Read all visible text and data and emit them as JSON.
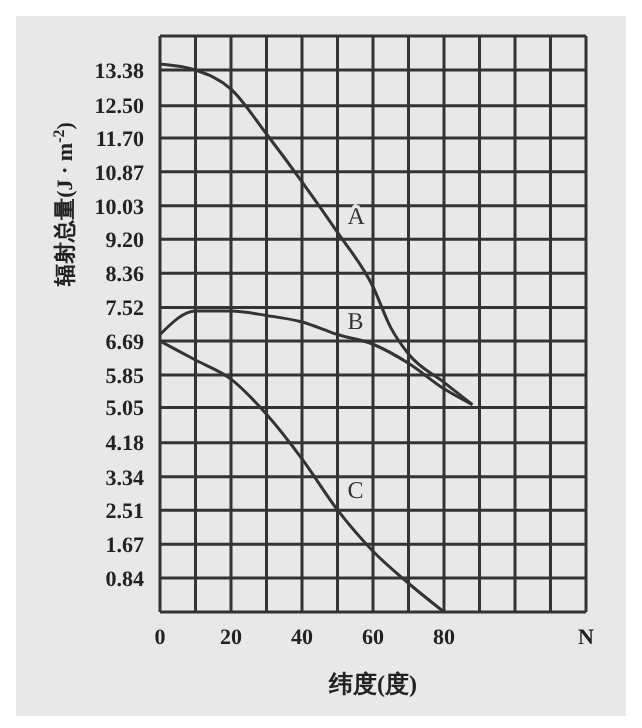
{
  "chart_data": {
    "type": "line",
    "xlabel": "纬度(度)",
    "ylabel": "辐射总量(J · m$^{-2}$)",
    "xlim": [
      0,
      120
    ],
    "xticks": [
      0,
      {
        "value": 10,
        "label": null
      },
      20,
      {
        "value": 30,
        "label": null
      },
      40,
      {
        "value": 50,
        "label": null
      },
      60,
      {
        "value": 70,
        "label": null
      },
      80,
      {
        "value": 90,
        "label": null
      },
      {
        "value": 100,
        "label": null
      },
      {
        "value": 110,
        "label": null
      },
      {
        "value": 120,
        "label": "N"
      }
    ],
    "ylim": [
      0,
      14.22
    ],
    "yticks": [
      {
        "value": 0,
        "label": null
      },
      0.84,
      1.67,
      2.51,
      3.34,
      4.18,
      5.05,
      5.85,
      6.69,
      7.52,
      8.36,
      {
        "value": 9.2,
        "label": "9.20"
      },
      10.03,
      10.87,
      {
        "value": 11.7,
        "label": "11.70"
      },
      {
        "value": 12.5,
        "label": "12.50"
      },
      13.38,
      {
        "value": 14.22,
        "label": null
      }
    ],
    "grid": true,
    "marker": "none",
    "line_style": "solid",
    "series": [
      {
        "name": "A",
        "color": "#333333",
        "x": [
          0,
          10,
          20,
          30,
          40,
          50,
          60,
          65,
          70,
          80,
          88
        ],
        "values": [
          13.53,
          13.38,
          12.91,
          11.8,
          10.62,
          9.37,
          8.03,
          7.02,
          6.37,
          5.67,
          5.12
        ]
      },
      {
        "name": "B",
        "color": "#333333",
        "x": [
          0,
          10,
          20,
          30,
          40,
          50,
          60,
          70,
          80,
          88
        ],
        "values": [
          6.85,
          7.43,
          7.43,
          7.32,
          7.16,
          6.85,
          6.61,
          6.14,
          5.51,
          5.12
        ]
      },
      {
        "name": "C",
        "color": "#333333",
        "x": [
          0,
          10,
          20,
          30,
          40,
          50,
          60,
          70,
          80
        ],
        "values": [
          6.69,
          6.22,
          5.75,
          4.88,
          3.78,
          2.52,
          1.5,
          0.71,
          0
        ]
      }
    ]
  }
}
